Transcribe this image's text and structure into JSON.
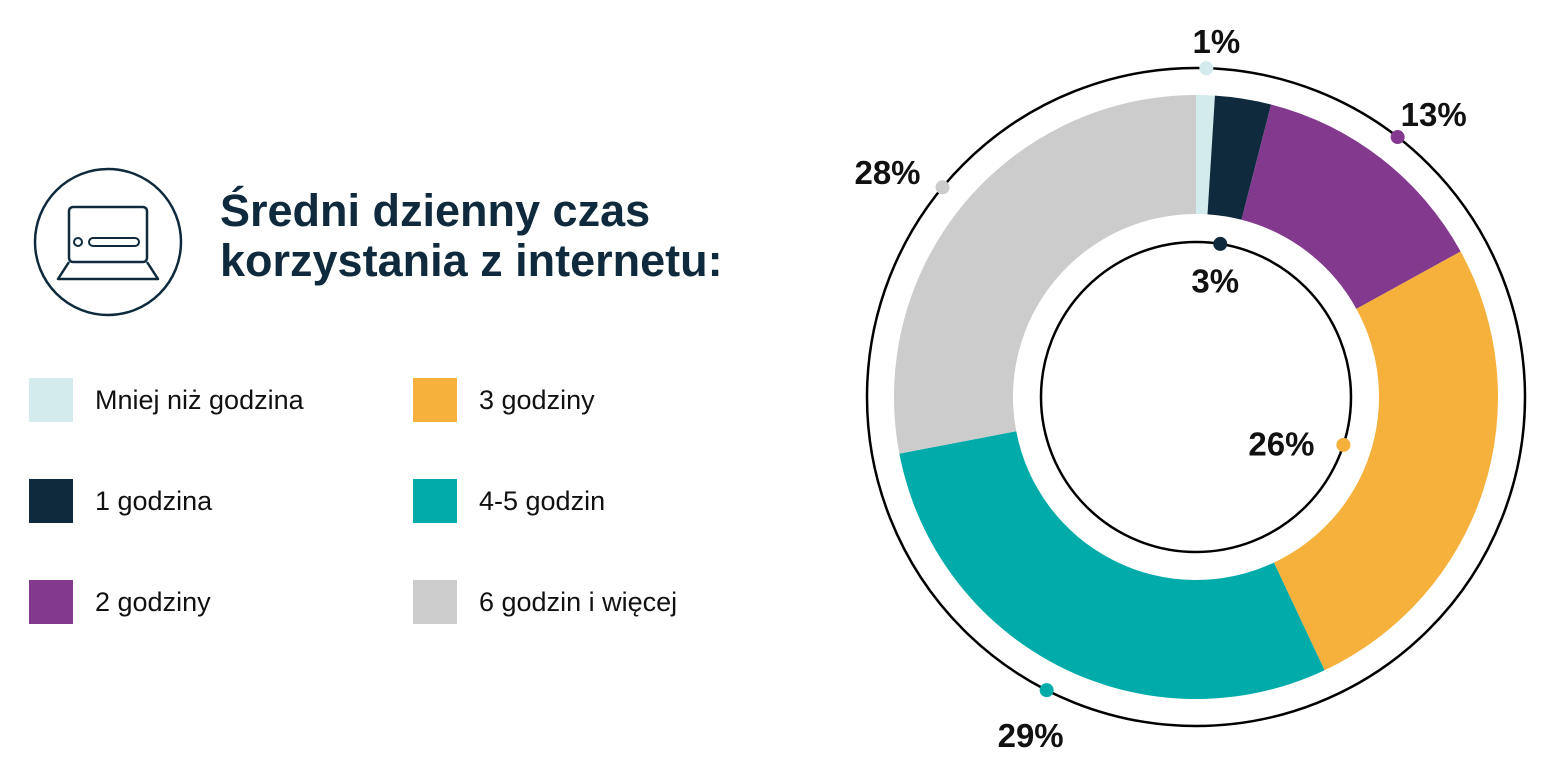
{
  "header": {
    "title_line1": "Średni dzienny czas",
    "title_line2": "korzystania z internetu:"
  },
  "legend": [
    {
      "label": "Mniej niż godzina",
      "color": "#d3ebed"
    },
    {
      "label": "1 godzina",
      "color": "#0f2a3d"
    },
    {
      "label": "2 godziny",
      "color": "#833a8e"
    },
    {
      "label": "3 godziny",
      "color": "#f6b03c"
    },
    {
      "label": "4-5 godzin",
      "color": "#00aba9"
    },
    {
      "label": "6 godzin i więcej",
      "color": "#cccccc"
    }
  ],
  "chart_data": {
    "type": "pie",
    "title": "Średni dzienny czas korzystania z internetu:",
    "categories": [
      "Mniej niż godzina",
      "1 godzina",
      "2 godziny",
      "3 godziny",
      "4-5 godzin",
      "6 godzin i więcej"
    ],
    "values": [
      1,
      3,
      13,
      26,
      29,
      28
    ],
    "labels": [
      "1%",
      "3%",
      "13%",
      "26%",
      "29%",
      "28%"
    ],
    "colors": [
      "#d3ebed",
      "#0f2a3d",
      "#833a8e",
      "#f6b03c",
      "#00aba9",
      "#cccccc"
    ],
    "style": "donut"
  },
  "icons": {
    "badge": "laptop-icon"
  }
}
